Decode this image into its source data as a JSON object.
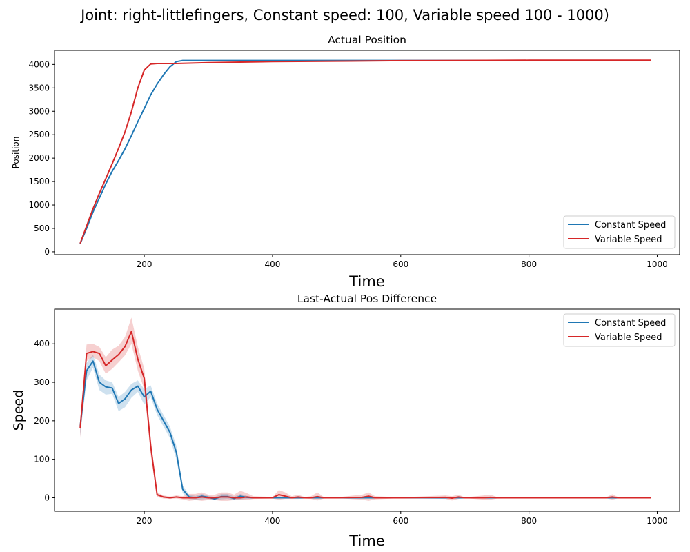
{
  "figure": {
    "title": "Joint: right-littlefingers, Constant speed: 100, Variable speed 100 - 1000)"
  },
  "chart_data": [
    {
      "type": "line",
      "title": "Actual Position",
      "xlabel": "Time",
      "ylabel": "Position",
      "xlim": [
        60,
        1035
      ],
      "ylim": [
        -60,
        4300
      ],
      "xticks": [
        200,
        400,
        600,
        800,
        1000
      ],
      "yticks": [
        0,
        500,
        1000,
        1500,
        2000,
        2500,
        3000,
        3500,
        4000
      ],
      "grid": false,
      "legend": "lower-right",
      "series": [
        {
          "name": "Constant Speed",
          "color": "#1f77b4",
          "x": [
            100,
            110,
            120,
            130,
            140,
            150,
            160,
            170,
            180,
            190,
            200,
            210,
            220,
            230,
            240,
            250,
            260,
            270,
            300,
            350,
            400,
            500,
            600,
            700,
            800,
            900,
            990
          ],
          "y": [
            170,
            500,
            850,
            1150,
            1450,
            1720,
            1950,
            2200,
            2480,
            2780,
            3060,
            3350,
            3580,
            3780,
            3950,
            4060,
            4085,
            4085,
            4085,
            4085,
            4085,
            4085,
            4085,
            4085,
            4085,
            4085,
            4085
          ]
        },
        {
          "name": "Variable Speed",
          "color": "#d62728",
          "x": [
            100,
            110,
            120,
            130,
            140,
            150,
            160,
            170,
            180,
            190,
            200,
            210,
            220,
            250,
            280,
            300,
            350,
            400,
            500,
            600,
            700,
            800,
            900,
            990
          ],
          "y": [
            180,
            550,
            920,
            1250,
            1560,
            1880,
            2210,
            2560,
            2990,
            3500,
            3880,
            4010,
            4020,
            4020,
            4030,
            4040,
            4050,
            4060,
            4070,
            4080,
            4085,
            4090,
            4090,
            4090
          ]
        }
      ]
    },
    {
      "type": "line",
      "title": "Last-Actual Pos Difference",
      "xlabel": "Time",
      "ylabel": "Speed",
      "xlim": [
        60,
        1035
      ],
      "ylim": [
        -35,
        490
      ],
      "xticks": [
        200,
        400,
        600,
        800,
        1000
      ],
      "yticks": [
        0,
        100,
        200,
        300,
        400
      ],
      "grid": false,
      "legend": "upper-right",
      "series": [
        {
          "name": "Constant Speed",
          "color": "#1f77b4",
          "x": [
            100,
            110,
            120,
            130,
            140,
            150,
            160,
            170,
            180,
            190,
            200,
            210,
            220,
            230,
            240,
            250,
            260,
            270,
            280,
            290,
            300,
            310,
            320,
            330,
            340,
            350,
            360,
            370,
            380,
            400,
            420,
            450,
            500,
            600,
            700,
            800,
            900,
            990
          ],
          "y": [
            185,
            330,
            355,
            300,
            288,
            285,
            245,
            257,
            280,
            290,
            262,
            277,
            230,
            200,
            170,
            118,
            22,
            2,
            0,
            4,
            1,
            -3,
            3,
            3,
            -2,
            4,
            1,
            0,
            0,
            0,
            0,
            0,
            0,
            0,
            0,
            0,
            0,
            0
          ],
          "lower": [
            160,
            305,
            338,
            280,
            268,
            270,
            225,
            235,
            260,
            275,
            242,
            262,
            215,
            185,
            155,
            100,
            12,
            -3,
            -5,
            -4,
            -3,
            -6,
            -4,
            -3,
            -6,
            -4,
            -3,
            -2,
            -1,
            -1,
            -1,
            -1,
            -1,
            -1,
            -1,
            -1,
            -1,
            -1
          ],
          "upper": [
            200,
            350,
            372,
            320,
            305,
            300,
            262,
            275,
            296,
            305,
            282,
            292,
            245,
            215,
            185,
            135,
            32,
            8,
            5,
            10,
            5,
            2,
            10,
            10,
            3,
            10,
            5,
            2,
            1,
            1,
            1,
            1,
            1,
            1,
            1,
            1,
            1,
            1
          ]
        },
        {
          "name": "Variable Speed",
          "color": "#d62728",
          "x": [
            100,
            110,
            120,
            130,
            140,
            150,
            160,
            170,
            180,
            190,
            200,
            210,
            220,
            230,
            240,
            250,
            260,
            270,
            280,
            290,
            300,
            310,
            320,
            330,
            340,
            350,
            360,
            370,
            400,
            410,
            420,
            430,
            440,
            450,
            460,
            470,
            480,
            500,
            540,
            550,
            560,
            600,
            670,
            680,
            690,
            700,
            730,
            740,
            750,
            800,
            900,
            920,
            930,
            940,
            990
          ],
          "y": [
            180,
            375,
            380,
            375,
            343,
            358,
            372,
            393,
            432,
            360,
            310,
            135,
            8,
            2,
            0,
            2,
            0,
            0,
            0,
            2,
            0,
            0,
            2,
            2,
            0,
            0,
            2,
            0,
            0,
            8,
            4,
            0,
            2,
            0,
            0,
            3,
            0,
            0,
            1,
            4,
            0,
            0,
            1,
            -1,
            2,
            0,
            0,
            1,
            0,
            0,
            0,
            0,
            2,
            0,
            0
          ],
          "lower": [
            155,
            355,
            365,
            355,
            322,
            335,
            352,
            370,
            400,
            330,
            282,
            112,
            2,
            -2,
            -3,
            -2,
            -4,
            -8,
            -6,
            -8,
            -6,
            -6,
            -8,
            -8,
            -6,
            -6,
            -6,
            -3,
            -2,
            -5,
            -3,
            -3,
            -3,
            -2,
            -3,
            -7,
            -2,
            -1,
            -5,
            -8,
            -4,
            -1,
            -3,
            -7,
            -3,
            -1,
            -5,
            -5,
            -2,
            -1,
            -1,
            -1,
            -5,
            -1,
            -1
          ],
          "upper": [
            200,
            398,
            400,
            392,
            365,
            385,
            395,
            418,
            468,
            392,
            335,
            155,
            14,
            6,
            3,
            6,
            4,
            10,
            10,
            14,
            8,
            8,
            14,
            14,
            8,
            18,
            12,
            4,
            2,
            20,
            14,
            4,
            8,
            2,
            4,
            14,
            2,
            1,
            8,
            14,
            4,
            1,
            6,
            4,
            8,
            1,
            6,
            8,
            2,
            1,
            1,
            1,
            9,
            1,
            1
          ]
        }
      ]
    }
  ]
}
